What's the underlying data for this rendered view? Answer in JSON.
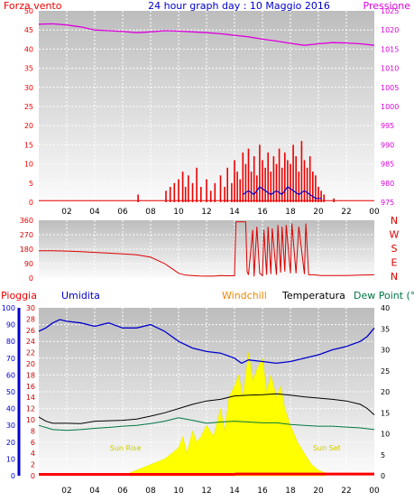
{
  "chart_data": {
    "title": "24 hour graph day : 10 Maggio 2016",
    "hour_labels": [
      "02",
      "04",
      "06",
      "08",
      "10",
      "12",
      "14",
      "16",
      "18",
      "20",
      "22",
      "00"
    ],
    "colors": {
      "wind": "#ee0000",
      "pressure": "#dd00dd",
      "direction": "#dd0000",
      "humidity": "#0000cc",
      "windchill": "#ee8800",
      "temperature": "#000000",
      "dewpoint": "#007744",
      "rain": "#ff0000",
      "solar": "#ffff00",
      "rain_axis": "#0000cc"
    },
    "panels": [
      {
        "id": "wind-pressure",
        "type": "bar+line",
        "left_label": "Forza vento",
        "right_label": "Pressione",
        "left_ticks": [
          "0",
          "5",
          "10",
          "15",
          "20",
          "25",
          "30",
          "35",
          "40",
          "45",
          "50"
        ],
        "right_ticks": [
          "975",
          "980",
          "985",
          "990",
          "995",
          "1000",
          "1005",
          "1010",
          "1015",
          "1020",
          "1025"
        ],
        "left_range": [
          0,
          50
        ],
        "right_range": [
          975,
          1025
        ],
        "pressure": {
          "x": [
            0,
            1,
            2,
            3,
            4,
            5,
            6,
            7,
            8,
            9,
            10,
            11,
            12,
            13,
            14,
            15,
            16,
            17,
            18,
            19,
            20,
            21,
            22,
            23,
            24
          ],
          "y": [
            1021.5,
            1021.6,
            1021.3,
            1020.8,
            1020.0,
            1019.8,
            1019.6,
            1019.3,
            1019.5,
            1019.8,
            1019.7,
            1019.5,
            1019.3,
            1019.0,
            1018.6,
            1018.2,
            1017.6,
            1017.1,
            1016.5,
            1016.0,
            1016.4,
            1016.7,
            1016.6,
            1016.4,
            1016.0
          ]
        },
        "wind": {
          "x": [
            7.1,
            9.1,
            9.4,
            9.7,
            10.0,
            10.3,
            10.5,
            10.7,
            11.0,
            11.3,
            11.6,
            12.0,
            12.3,
            12.6,
            13.0,
            13.3,
            13.5,
            13.8,
            14.0,
            14.2,
            14.4,
            14.6,
            14.8,
            15.0,
            15.2,
            15.4,
            15.6,
            15.8,
            16.0,
            16.2,
            16.4,
            16.6,
            16.8,
            17.0,
            17.2,
            17.4,
            17.6,
            17.8,
            18.0,
            18.2,
            18.4,
            18.6,
            18.8,
            19.0,
            19.2,
            19.4,
            19.6,
            19.8,
            20.0,
            20.2,
            20.4,
            21.1
          ],
          "y": [
            2,
            3,
            4,
            5,
            6,
            8,
            4,
            7,
            5,
            9,
            4,
            6,
            3,
            5,
            7,
            4,
            9,
            5,
            11,
            8,
            6,
            13,
            10,
            14,
            8,
            12,
            7,
            15,
            11,
            9,
            13,
            8,
            12,
            10,
            14,
            9,
            13,
            11,
            10,
            15,
            12,
            8,
            16,
            11,
            9,
            12,
            8,
            7,
            4,
            3,
            2,
            1
          ]
        },
        "gust_line": {
          "x": [
            14.6,
            15.0,
            15.4,
            15.8,
            16.2,
            16.6,
            17.0,
            17.4,
            17.8,
            18.2,
            18.6,
            19.0,
            19.4,
            19.8,
            20.2
          ],
          "y": [
            2,
            3,
            2,
            4,
            3,
            2,
            3,
            2,
            4,
            3,
            2,
            3,
            2,
            1,
            1
          ]
        }
      },
      {
        "id": "direction",
        "type": "line",
        "left_ticks": [
          "0",
          "90",
          "180",
          "270",
          "360"
        ],
        "left_range": [
          0,
          360
        ],
        "compass": [
          "N",
          "W",
          "S",
          "E",
          "N"
        ],
        "direction": {
          "x": [
            0,
            1,
            2,
            3,
            4,
            5,
            6,
            7,
            8,
            8.5,
            9,
            9.5,
            10,
            10.5,
            11,
            11.5,
            12,
            12.5,
            13,
            13.5,
            14,
            14.1,
            14.2,
            14.8,
            14.9,
            15.0,
            15.3,
            15.4,
            15.6,
            15.8,
            16.0,
            16.1,
            16.3,
            16.4,
            16.6,
            16.7,
            17.0,
            17.1,
            17.3,
            17.4,
            17.6,
            17.7,
            18.0,
            18.1,
            18.4,
            18.6,
            19.0,
            19.1,
            19.3,
            19.6,
            19.9,
            20.2,
            21,
            22,
            23,
            24
          ],
          "y": [
            170,
            170,
            168,
            165,
            160,
            155,
            150,
            145,
            130,
            110,
            90,
            60,
            30,
            18,
            15,
            13,
            12,
            12,
            15,
            14,
            14,
            350,
            350,
            350,
            40,
            20,
            300,
            10,
            320,
            30,
            15,
            300,
            20,
            320,
            25,
            310,
            20,
            330,
            35,
            320,
            40,
            330,
            30,
            340,
            30,
            320,
            25,
            340,
            20,
            20,
            18,
            15,
            15,
            16,
            18,
            20
          ]
        }
      },
      {
        "id": "temp-humidity",
        "type": "line+area",
        "labels": {
          "rain": "Pioggia",
          "humidity": "Umidita",
          "windchill": "Windchill",
          "temperature": "Temperatura",
          "dewpoint": "Dew Point (°C"
        },
        "rain_ticks": [
          "0",
          "10",
          "20",
          "30",
          "40",
          "50",
          "60",
          "70",
          "80",
          "90",
          "100"
        ],
        "left_ticks": [
          "0",
          "2",
          "4",
          "6",
          "8",
          "10",
          "12",
          "14",
          "16",
          "18",
          "20",
          "22",
          "24",
          "26",
          "28",
          "30"
        ],
        "right_ticks": [
          "0",
          "5",
          "10",
          "15",
          "20",
          "25",
          "30",
          "35",
          "40"
        ],
        "left_range": [
          0,
          30
        ],
        "right_range": [
          0,
          40
        ],
        "annotations": [
          {
            "text": "Sun Rise",
            "x": 6.2
          },
          {
            "text": "Sun Set",
            "x": 20.6
          }
        ],
        "humidity": {
          "x": [
            0,
            0.5,
            1,
            1.5,
            2,
            3,
            4,
            5,
            6,
            7,
            8,
            8.5,
            9,
            10,
            11,
            12,
            13,
            14,
            14.5,
            15,
            16,
            17,
            18,
            19,
            20,
            21,
            22,
            23,
            23.5,
            24
          ],
          "y": [
            86,
            88,
            91,
            93,
            92,
            91,
            89,
            91,
            88,
            88,
            90,
            88,
            86,
            80,
            76,
            74,
            73,
            70,
            67,
            69,
            68,
            67,
            68,
            70,
            72,
            75,
            77,
            80,
            83,
            88
          ]
        },
        "temperature": {
          "x": [
            0,
            0.5,
            1,
            2,
            3,
            4,
            5,
            6,
            7,
            8,
            9,
            10,
            11,
            12,
            13,
            14,
            15,
            16,
            17,
            18,
            19,
            20,
            21,
            22,
            23,
            23.5,
            24
          ],
          "y": [
            14,
            13,
            12.5,
            12.5,
            12.4,
            13,
            13.1,
            13.2,
            13.5,
            14.2,
            15,
            16,
            17,
            17.8,
            18.2,
            19,
            19.2,
            19.3,
            19.5,
            19.2,
            18.8,
            18.5,
            18.2,
            17.8,
            17.0,
            16.0,
            14.5
          ]
        },
        "dewpoint": {
          "x": [
            0,
            1,
            2,
            3,
            4,
            5,
            6,
            7,
            8,
            9,
            10,
            11,
            12,
            13,
            14,
            15,
            16,
            17,
            18,
            19,
            20,
            21,
            22,
            23,
            24
          ],
          "y": [
            12,
            11,
            10.8,
            11,
            11.3,
            11.5,
            11.8,
            12,
            12.4,
            13,
            13.8,
            13.2,
            12.5,
            12.8,
            13,
            12.8,
            12.6,
            12.6,
            12.2,
            12,
            11.8,
            11.8,
            11.6,
            11.4,
            11
          ]
        },
        "solar": {
          "x": [
            6.5,
            7,
            7.5,
            8,
            8.5,
            9,
            9.5,
            10,
            10.3,
            10.6,
            11,
            11.3,
            11.6,
            12,
            12.5,
            13,
            13.3,
            13.6,
            14,
            14.3,
            14.6,
            15,
            15.3,
            15.6,
            16,
            16.3,
            16.6,
            17,
            17.3,
            17.6,
            18,
            18.5,
            19,
            19.5,
            20,
            20.5
          ],
          "y": [
            0.5,
            1,
            1.5,
            2,
            2.5,
            3,
            4,
            5,
            7,
            4,
            8,
            6,
            7,
            9,
            7,
            12,
            8,
            14,
            16,
            18,
            14,
            22,
            17,
            19,
            21,
            15,
            18,
            14,
            16,
            12,
            9,
            6,
            4,
            2,
            1,
            0.5
          ]
        },
        "rain": {
          "x": [
            0,
            14,
            14.1,
            24
          ],
          "y": [
            0,
            0,
            0.2,
            0.2
          ]
        }
      }
    ]
  }
}
